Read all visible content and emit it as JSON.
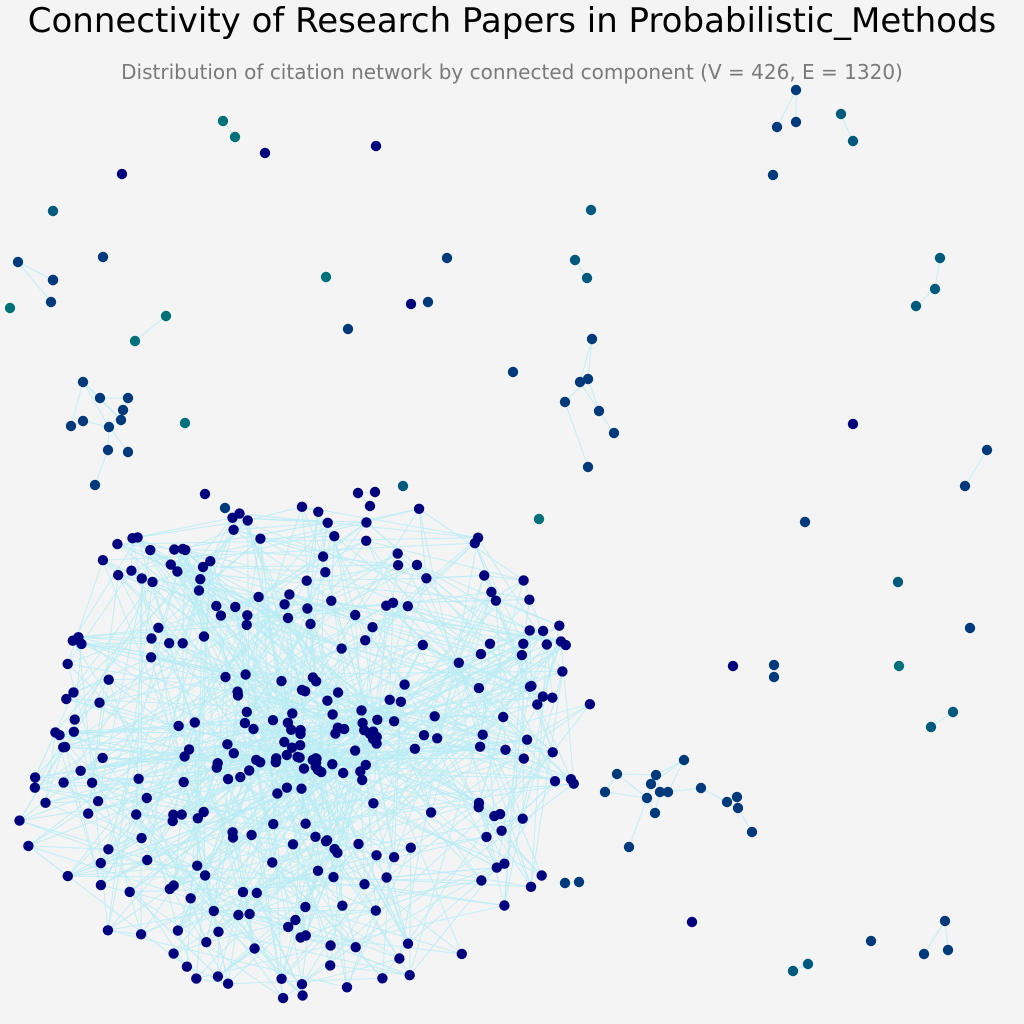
{
  "title": "Connectivity of Research Papers in Probabilistic_Methods",
  "subtitle": "Distribution of citation network by connected component (V = 426, E = 1320)",
  "colors": {
    "background": "#f4f4f4",
    "edge": "#b9ecf4",
    "giant_component": "#00007f",
    "medium_component": "#003a7a",
    "small_component": "#005a7d",
    "pair_component": "#00707a"
  },
  "chart_data": {
    "type": "network",
    "vertex_count": 426,
    "edge_count": 1320,
    "color_encoding": "node color by connected component size (dark navy = largest component, teal = smallest)"
  }
}
